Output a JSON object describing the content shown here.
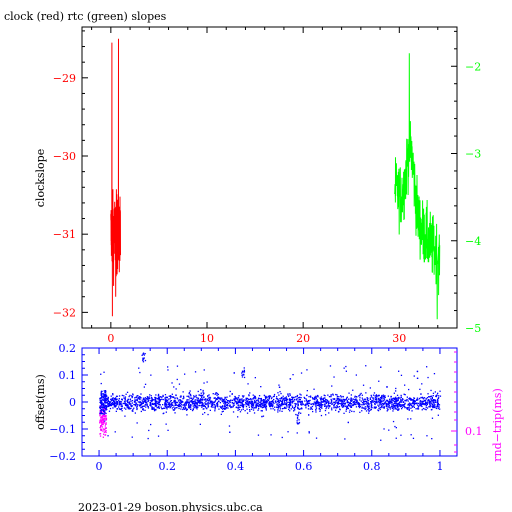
{
  "title": "clock (red) rtc (green) slopes",
  "footer": "2023-01-29  boson.physics.ubc.ca",
  "colors": {
    "axis": "#000000",
    "clock": "#ff0000",
    "rtc": "#00ff00",
    "offset": "#0000ff",
    "rndtrip": "#ff00ff",
    "bottom_axis": "#0000ff"
  },
  "chart_data": [
    {
      "type": "line",
      "title": "clock (red) rtc (green) slopes",
      "ylabel": "clockslope",
      "xlim": [
        -3,
        36
      ],
      "ylim_left": [
        -32.2,
        -28.35
      ],
      "ylim_right": [
        -5,
        -1.55
      ],
      "x_ticks": [
        0,
        10,
        20,
        30
      ],
      "y_ticks_left": [
        -32,
        -31,
        -30,
        -29
      ],
      "y_ticks_right": [
        -5,
        -4,
        -3,
        -2
      ],
      "series": [
        {
          "name": "clock",
          "axis": "left",
          "x_range": [
            0.0,
            1.0
          ],
          "approx_range": [
            -32.05,
            -28.5
          ],
          "center": -31.0
        },
        {
          "name": "rtc",
          "axis": "right",
          "x_range": [
            29.5,
            34.2
          ],
          "approx_range": [
            -4.9,
            -1.85
          ],
          "center_start": -3.4,
          "center_end": -4.2
        }
      ],
      "grid": false
    },
    {
      "type": "scatter",
      "ylabel": "offset(ms)",
      "ylabel_right": "rnd−trip(ms)",
      "xlim": [
        -0.05,
        1.05
      ],
      "ylim": [
        -0.2,
        0.2
      ],
      "x_ticks": [
        "0",
        "0.2",
        "0.4",
        "0.6",
        "0.8",
        "1"
      ],
      "y_ticks": [
        "−0.2",
        "−0.1",
        "0",
        "0.1",
        "0.2"
      ],
      "y_ticks_right": [
        "0.1"
      ],
      "series": [
        {
          "name": "offset",
          "x_range": [
            0.0,
            1.0
          ],
          "center": 0.0,
          "spread": 0.015
        },
        {
          "name": "rnd-trip",
          "x_range": [
            0.0,
            0.02
          ],
          "center": -0.07,
          "spread": 0.05
        }
      ],
      "grid": false
    }
  ]
}
